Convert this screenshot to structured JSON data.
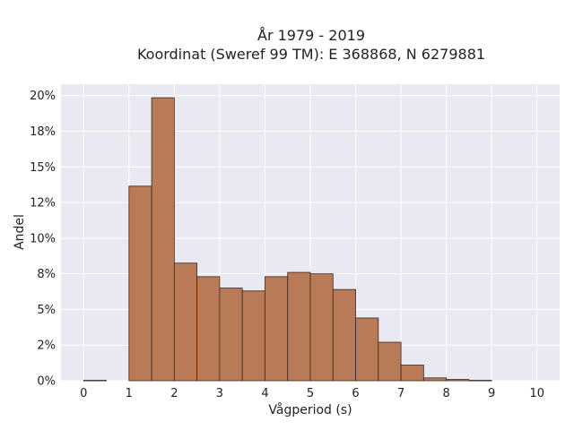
{
  "chart_data": {
    "type": "bar",
    "title": "År 1979 - 2019",
    "subtitle": "Koordinat (Sweref 99 TM): E 368868, N 6279881",
    "xlabel": "Vågperiod (s)",
    "ylabel": "Andel",
    "xlim": [
      -0.5,
      10.5
    ],
    "ylim": [
      0,
      0.208
    ],
    "bin_width": 0.5,
    "x_ticks": [
      0,
      1,
      2,
      3,
      4,
      5,
      6,
      7,
      8,
      9,
      10
    ],
    "x_tick_labels": [
      "0",
      "1",
      "2",
      "3",
      "4",
      "5",
      "6",
      "7",
      "8",
      "9",
      "10"
    ],
    "y_ticks": [
      0,
      0.025,
      0.05,
      0.075,
      0.1,
      0.125,
      0.15,
      0.175,
      0.2
    ],
    "y_tick_labels": [
      "0%",
      "2%",
      "5%",
      "8%",
      "10%",
      "12%",
      "15%",
      "18%",
      "20%"
    ],
    "bins": [
      {
        "x0": 0.0,
        "x1": 0.5,
        "value": 0.0003
      },
      {
        "x0": 1.0,
        "x1": 1.5,
        "value": 0.1365
      },
      {
        "x0": 1.5,
        "x1": 2.0,
        "value": 0.1985
      },
      {
        "x0": 2.0,
        "x1": 2.5,
        "value": 0.0825
      },
      {
        "x0": 2.5,
        "x1": 3.0,
        "value": 0.073
      },
      {
        "x0": 3.0,
        "x1": 3.5,
        "value": 0.065
      },
      {
        "x0": 3.5,
        "x1": 4.0,
        "value": 0.063
      },
      {
        "x0": 4.0,
        "x1": 4.5,
        "value": 0.073
      },
      {
        "x0": 4.5,
        "x1": 5.0,
        "value": 0.076
      },
      {
        "x0": 5.0,
        "x1": 5.5,
        "value": 0.075
      },
      {
        "x0": 5.5,
        "x1": 6.0,
        "value": 0.064
      },
      {
        "x0": 6.0,
        "x1": 6.5,
        "value": 0.044
      },
      {
        "x0": 6.5,
        "x1": 7.0,
        "value": 0.027
      },
      {
        "x0": 7.0,
        "x1": 7.5,
        "value": 0.011
      },
      {
        "x0": 7.5,
        "x1": 8.0,
        "value": 0.002
      },
      {
        "x0": 8.0,
        "x1": 8.5,
        "value": 0.0009
      },
      {
        "x0": 8.5,
        "x1": 9.0,
        "value": 0.0003
      }
    ],
    "grid": true,
    "colors": {
      "bar_fill": "#b97a57",
      "bar_edge": "#3a2a20",
      "plot_background": "#e9e9f1",
      "grid": "#ffffff"
    }
  }
}
